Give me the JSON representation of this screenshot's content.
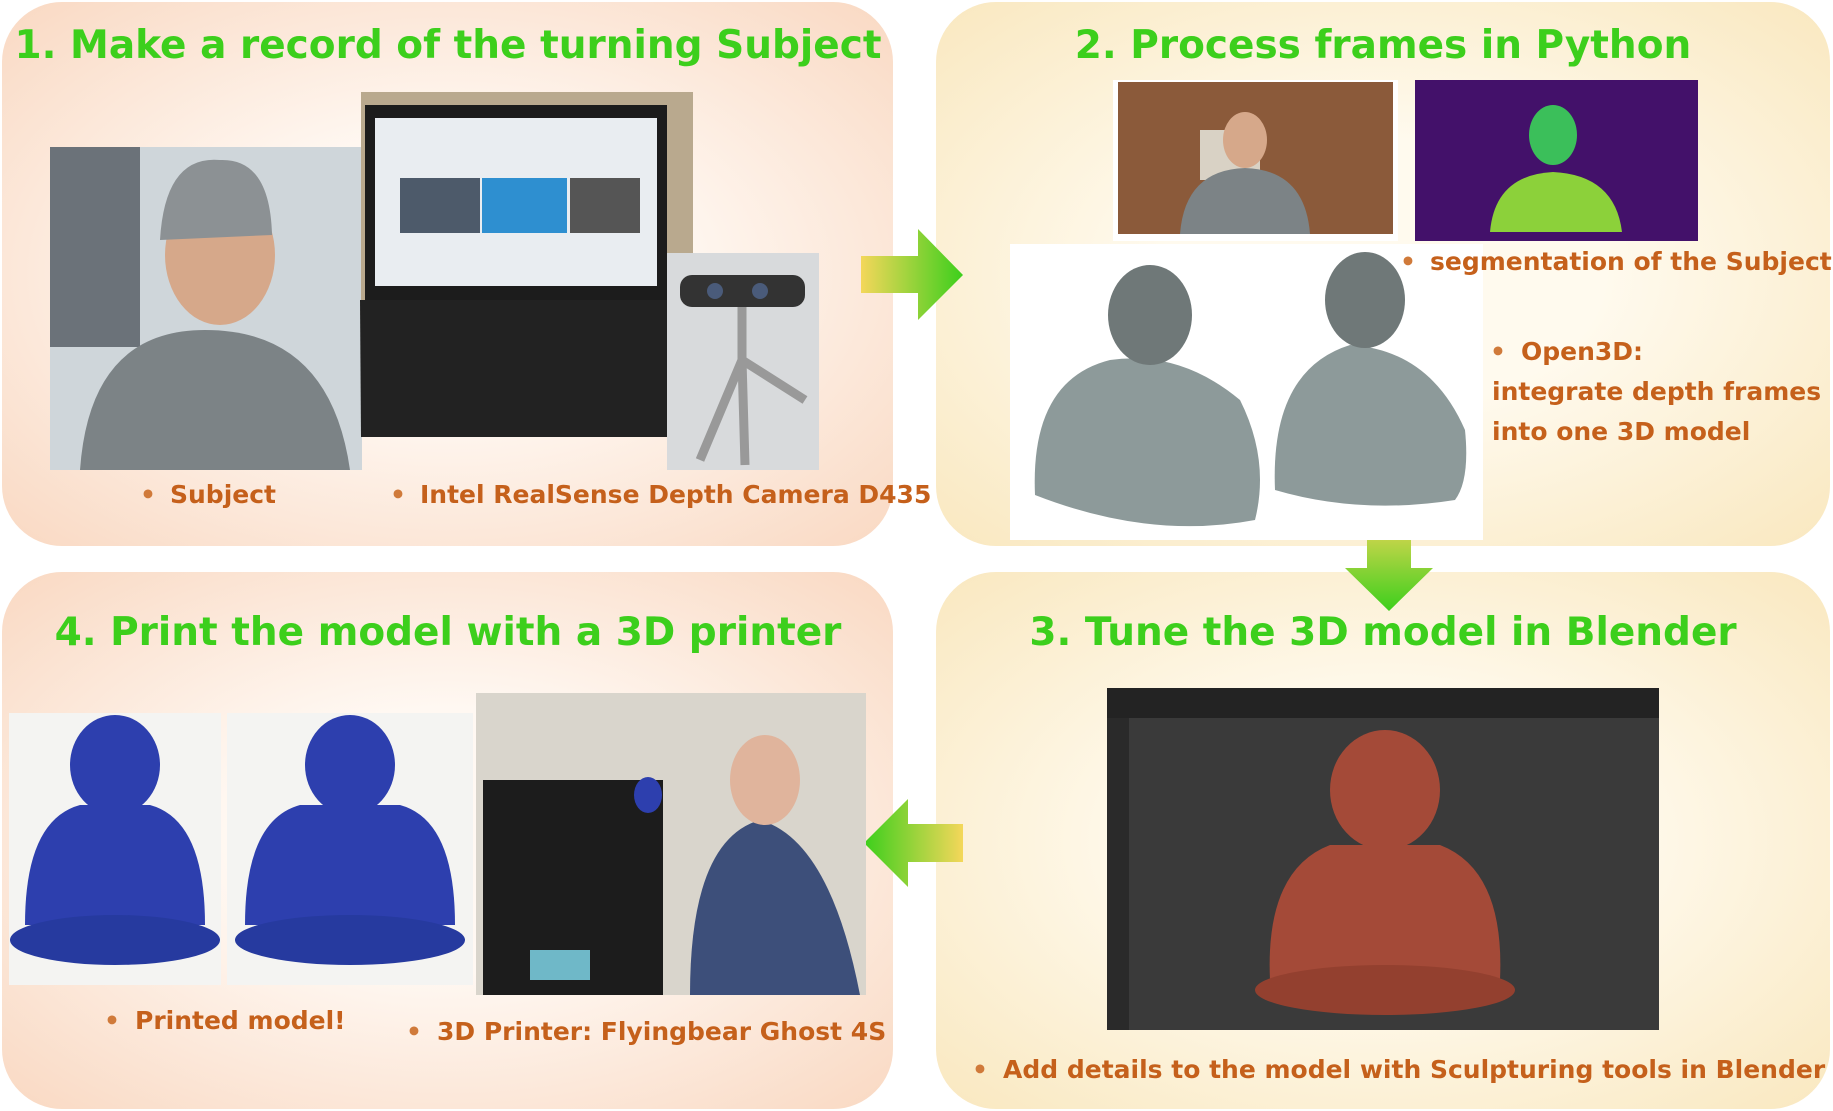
{
  "panels": [
    {
      "title": "1. Make a record of the turning Subject",
      "bullets": [
        "Subject",
        "Intel RealSense Depth Camera D435"
      ]
    },
    {
      "title": "2. Process frames in Python",
      "bullets": [
        "segmentation of the Subject",
        "Open3D:",
        "integrate depth frames",
        "into one 3D model"
      ]
    },
    {
      "title": "3. Tune the 3D model in Blender",
      "bullets": [
        "Add details to the model with Sculpturing tools in Blender"
      ]
    },
    {
      "title": "4. Print the model with a 3D printer",
      "bullets": [
        "Printed model!",
        "3D Printer: Flyingbear Ghost 4S"
      ]
    }
  ]
}
